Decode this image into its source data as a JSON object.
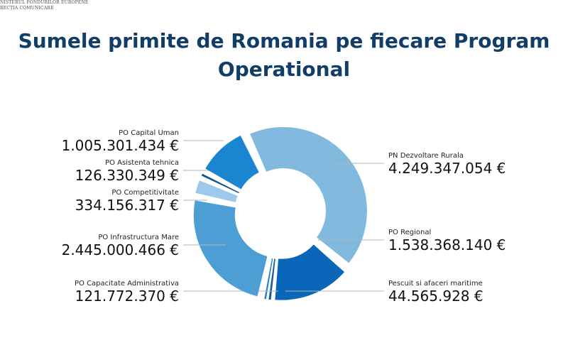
{
  "header": {
    "line1": "NISTERUL FONDURILOR EUROPENE",
    "line2": "RECȚIA COMUNICARE"
  },
  "title": {
    "line1": "Sumele primite de Romania pe fiecare Program",
    "line2": "Operational"
  },
  "chart_data": {
    "type": "pie",
    "donut": true,
    "title": "Sumele primite de Romania pe fiecare Program Operational",
    "slices": [
      {
        "label": "PN Dezvoltare Rurala",
        "value": 4249347054,
        "display": "4.249.347.054 €",
        "color": "#82b9df",
        "side": "right"
      },
      {
        "label": "PO Regional",
        "value": 1538368140,
        "display": "1.538.368.140 €",
        "color": "#0a66b8",
        "side": "right"
      },
      {
        "label": "Pescuit si afaceri maritime",
        "value": 44565928,
        "display": "44.565.928 €",
        "color": "#1b5d98",
        "side": "right"
      },
      {
        "label": "PO Capacitate Administrativa",
        "value": 121772370,
        "display": "121.772.370 €",
        "color": "#2a7fc4",
        "side": "left"
      },
      {
        "label": "PO Infrastructura Mare",
        "value": 2445000466,
        "display": "2.445.000.466 €",
        "color": "#4c9ed5",
        "side": "left"
      },
      {
        "label": "PO Competitivitate",
        "value": 334156317,
        "display": "334.156.317 €",
        "color": "#9fc9ea",
        "side": "left"
      },
      {
        "label": "PO Asistenta tehnica",
        "value": 126330349,
        "display": "126.330.349 €",
        "color": "#12508e",
        "side": "left"
      },
      {
        "label": "PO Capital Uman",
        "value": 1005301434,
        "display": "1.005.301.434 €",
        "color": "#1a86d2",
        "side": "left"
      }
    ]
  }
}
